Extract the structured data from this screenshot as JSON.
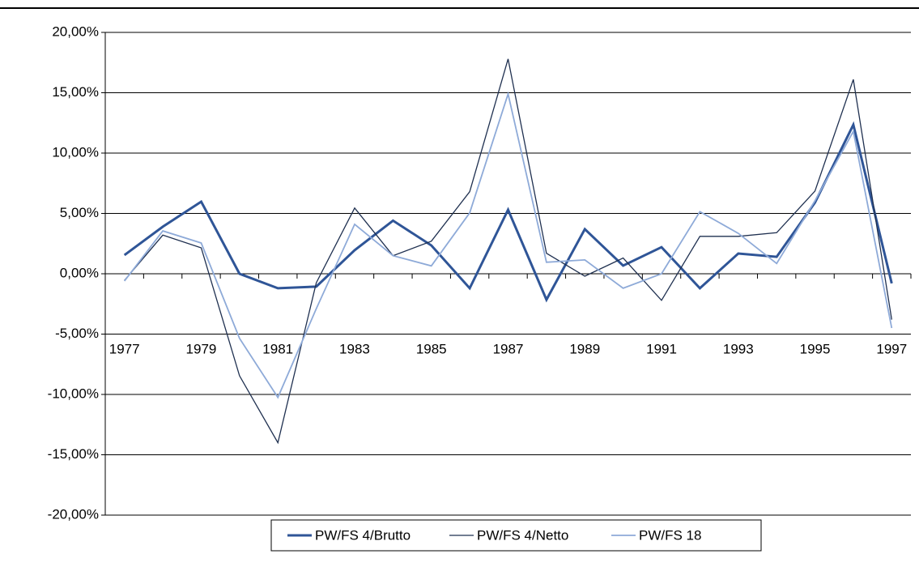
{
  "chart_data": {
    "type": "line",
    "categories": [
      "1977",
      null,
      "1979",
      null,
      "1981",
      null,
      "1983",
      null,
      "1985",
      null,
      "1987",
      null,
      "1989",
      null,
      "1991",
      null,
      "1993",
      null,
      "1995",
      null,
      "1997"
    ],
    "series": [
      {
        "name": "PW/FS 4/Brutto",
        "color": "#2f5597",
        "width": 3,
        "values": [
          1.55,
          3.9,
          5.97,
          0,
          -1.2,
          -1.07,
          1.95,
          4.4,
          2.35,
          -1.2,
          5.3,
          -2.15,
          3.7,
          0.67,
          2.2,
          -1.2,
          1.68,
          1.4,
          5.9,
          12.35,
          -0.8
        ]
      },
      {
        "name": "PW/FS 4/Netto",
        "color": "#1f3050",
        "width": 1.3,
        "values": [
          -0.55,
          3.2,
          2.15,
          -8.45,
          -14.0,
          -0.75,
          5.45,
          1.5,
          2.7,
          6.8,
          17.8,
          1.7,
          -0.2,
          1.3,
          -2.2,
          3.1,
          3.1,
          3.4,
          6.85,
          16.1,
          -3.8
        ]
      },
      {
        "name": "PW/FS 18",
        "color": "#8eaad8",
        "width": 1.8,
        "values": [
          -0.6,
          3.55,
          2.55,
          -5.35,
          -10.25,
          -2.9,
          4.1,
          1.5,
          0.65,
          5.05,
          14.9,
          0.95,
          1.15,
          -1.2,
          0.0,
          5.15,
          3.35,
          0.85,
          6.05,
          11.8,
          -4.5
        ]
      }
    ],
    "ylim": [
      -20,
      20
    ],
    "yticks": [
      {
        "value": -20,
        "label": "-20,00%"
      },
      {
        "value": -15,
        "label": "-15,00%"
      },
      {
        "value": -10,
        "label": "-10,00%"
      },
      {
        "value": -5,
        "label": "-5,00%"
      },
      {
        "value": 0,
        "label": "0,00%"
      },
      {
        "value": 5,
        "label": "5,00%"
      },
      {
        "value": 10,
        "label": "10,00%"
      },
      {
        "value": 15,
        "label": "15,00%"
      },
      {
        "value": 20,
        "label": "20,00%"
      }
    ],
    "grid": true,
    "legend": "bottom"
  }
}
